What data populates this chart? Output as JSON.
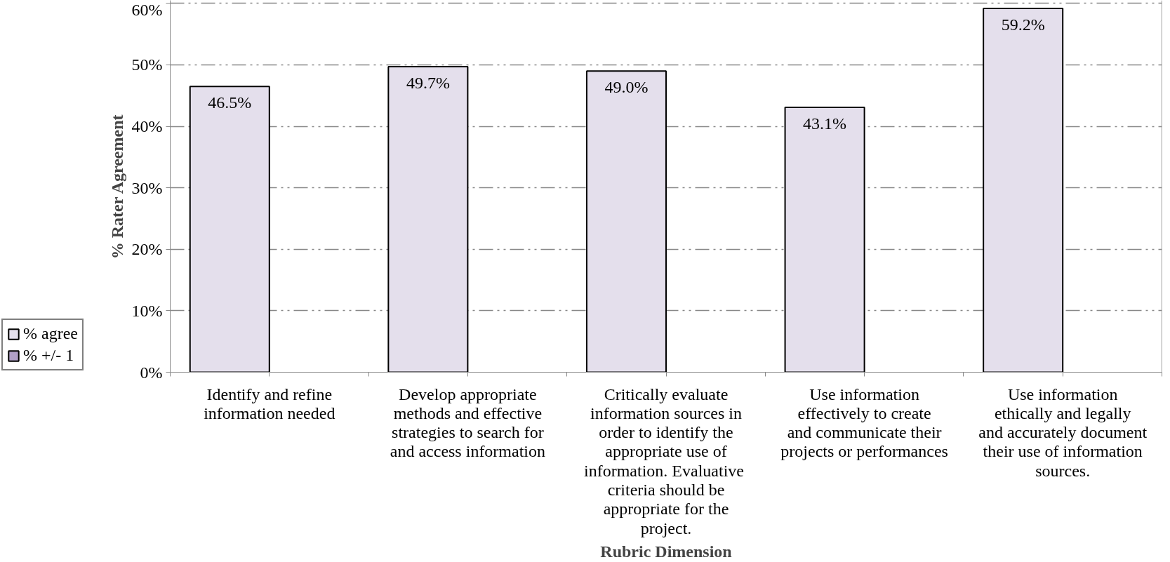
{
  "chart_data": {
    "type": "bar",
    "xlabel": "Rubric Dimension",
    "ylabel": "% Rater Agreement",
    "categories": [
      "Identify and refine information needed",
      "Develop appropriate methods and effective strategies to search for and access information",
      "Critically evaluate information sources in order to identify the appropriate use of information.  Evaluative criteria should be appropriate for the project.",
      "Use information effectively to create and communicate their projects or performances",
      "Use information ethically and legally and accurately document their use of information sources."
    ],
    "series": [
      {
        "name": "% agree",
        "color": "#e4dfec",
        "values": [
          46.5,
          49.7,
          49.0,
          43.1,
          59.2
        ],
        "value_labels": [
          "46.5%",
          "49.7%",
          "49.0%",
          "43.1%",
          "59.2%"
        ]
      },
      {
        "name": "% +/- 1",
        "color": "#b1a0c7",
        "values": [
          null,
          null,
          null,
          null,
          null
        ]
      }
    ],
    "ylim": [
      0,
      60.5
    ],
    "yticks": [
      {
        "value": 0,
        "label": "0%"
      },
      {
        "value": 10,
        "label": "10%"
      },
      {
        "value": 20,
        "label": "20%"
      },
      {
        "value": 30,
        "label": "30%"
      },
      {
        "value": 40,
        "label": "40%"
      },
      {
        "value": 50,
        "label": "50%"
      },
      {
        "value": 60,
        "label": "60%"
      }
    ],
    "grid": "y",
    "legend": "bottom left"
  }
}
